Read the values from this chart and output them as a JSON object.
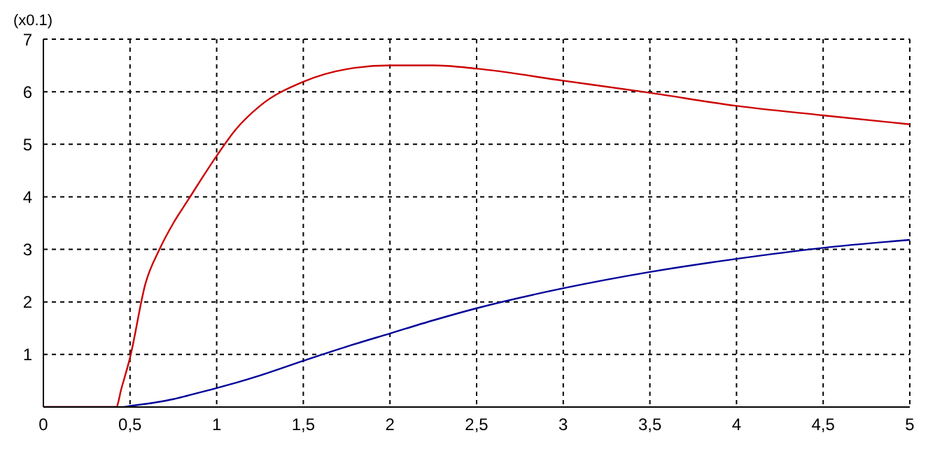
{
  "chart_data": {
    "type": "line",
    "ylabel": "(x0.1)",
    "x": [
      0,
      0.42,
      0.45,
      0.5,
      0.59,
      0.67,
      0.75,
      0.835,
      1,
      1.11,
      1.25,
      1.5,
      1.75,
      2,
      2.25,
      2.5,
      3,
      3.5,
      4,
      4.5,
      5
    ],
    "series": [
      {
        "color": "#cc0000",
        "values": [
          0,
          0,
          0.35,
          0.94,
          2.36,
          3.0,
          3.5,
          3.94,
          4.78,
          5.28,
          5.73,
          6.19,
          6.43,
          6.5,
          6.5,
          6.44,
          6.21,
          5.98,
          5.73,
          5.55,
          5.38
        ]
      },
      {
        "color": "#000099",
        "values": [
          0,
          0,
          0,
          0.02,
          0.06,
          0.1,
          0.15,
          0.22,
          0.36,
          0.46,
          0.6,
          0.88,
          1.15,
          1.4,
          1.65,
          1.88,
          2.26,
          2.57,
          2.82,
          3.03,
          3.18
        ]
      }
    ],
    "xlim": [
      0,
      5
    ],
    "xticks": [
      0,
      {
        "value": 0.5,
        "label": "0,5"
      },
      1,
      {
        "value": 1.5,
        "label": "1,5"
      },
      2,
      {
        "value": 2.5,
        "label": "2,5"
      },
      3,
      {
        "value": 3.5,
        "label": "3,5"
      },
      4,
      {
        "value": 4.5,
        "label": "4,5"
      },
      5
    ],
    "ylim": [
      0,
      7
    ],
    "yticks": [
      {
        "value": 0,
        "label": null
      },
      1,
      2,
      3,
      4,
      5,
      6,
      7
    ],
    "grid": true,
    "legend": false,
    "marker": "none",
    "line_style": "solid"
  }
}
